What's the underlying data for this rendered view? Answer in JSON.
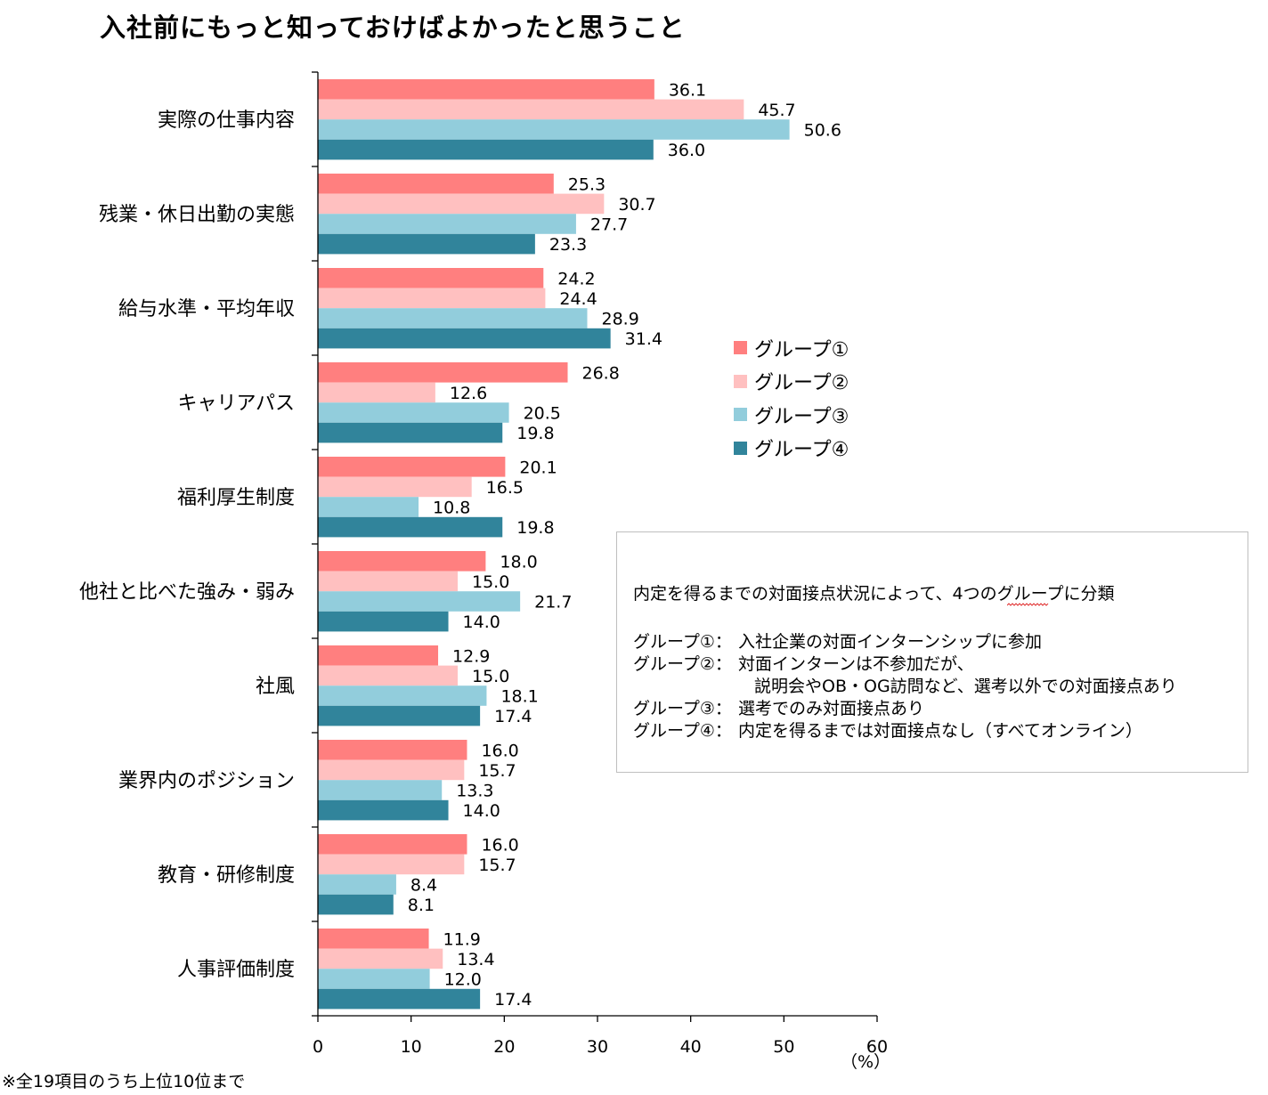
{
  "title": "入社前にもっと知っておけばよかったと思うこと",
  "colors": {
    "group1": "#ff7f7f",
    "group2": "#ffc0c0",
    "group3": "#92cddc",
    "group4": "#31849b",
    "axis": "#000000",
    "box_border": "#bfbfbf"
  },
  "legend": [
    "グループ①",
    "グループ②",
    "グループ③",
    "グループ④"
  ],
  "note": {
    "heading_before": "内定を得るまでの対面接点状況によって、",
    "heading_marked": "4つの",
    "heading_after": "グループに分類",
    "rows": [
      {
        "label": "グループ①：",
        "text": "入社企業の対面インターンシップに参加"
      },
      {
        "label": "グループ②：",
        "text": "対面インターンは不参加だが、"
      },
      {
        "label": "",
        "text": "説明会やOB・OG訪問など、選考以外での対面接点あり"
      },
      {
        "label": "グループ③：",
        "text": "選考でのみ対面接点あり"
      },
      {
        "label": "グループ④：",
        "text": "内定を得るまでは対面接点なし（すべてオンライン）"
      }
    ]
  },
  "unit": "（%）",
  "footnote": "※全19項目のうち上位10位まで",
  "chart_data": {
    "type": "bar",
    "orientation": "horizontal",
    "title": "入社前にもっと知っておけばよかったと思うこと",
    "xlabel": "（%）",
    "xlim": [
      0,
      60
    ],
    "xticks": [
      0,
      10,
      20,
      30,
      40,
      50,
      60
    ],
    "grid": false,
    "legend_position": "right",
    "categories": [
      "実際の仕事内容",
      "残業・休日出勤の実態",
      "給与水準・平均年収",
      "キャリアパス",
      "福利厚生制度",
      "他社と比べた強み・弱み",
      "社風",
      "業界内のポジション",
      "教育・研修制度",
      "人事評価制度"
    ],
    "series": [
      {
        "name": "グループ①",
        "values": [
          "36.1",
          "25.3",
          "24.2",
          "26.8",
          "20.1",
          "18.0",
          "12.9",
          "16.0",
          "16.0",
          "11.9"
        ]
      },
      {
        "name": "グループ②",
        "values": [
          "45.7",
          "30.7",
          "24.4",
          "12.6",
          "16.5",
          "15.0",
          "15.0",
          "15.7",
          "15.7",
          "13.4"
        ]
      },
      {
        "name": "グループ③",
        "values": [
          "50.6",
          "27.7",
          "28.9",
          "20.5",
          "10.8",
          "21.7",
          "18.1",
          "13.3",
          "8.4",
          "12.0"
        ]
      },
      {
        "name": "グループ④",
        "values": [
          "36.0",
          "23.3",
          "31.4",
          "19.8",
          "19.8",
          "14.0",
          "17.4",
          "14.0",
          "8.1",
          "17.4"
        ]
      }
    ]
  }
}
